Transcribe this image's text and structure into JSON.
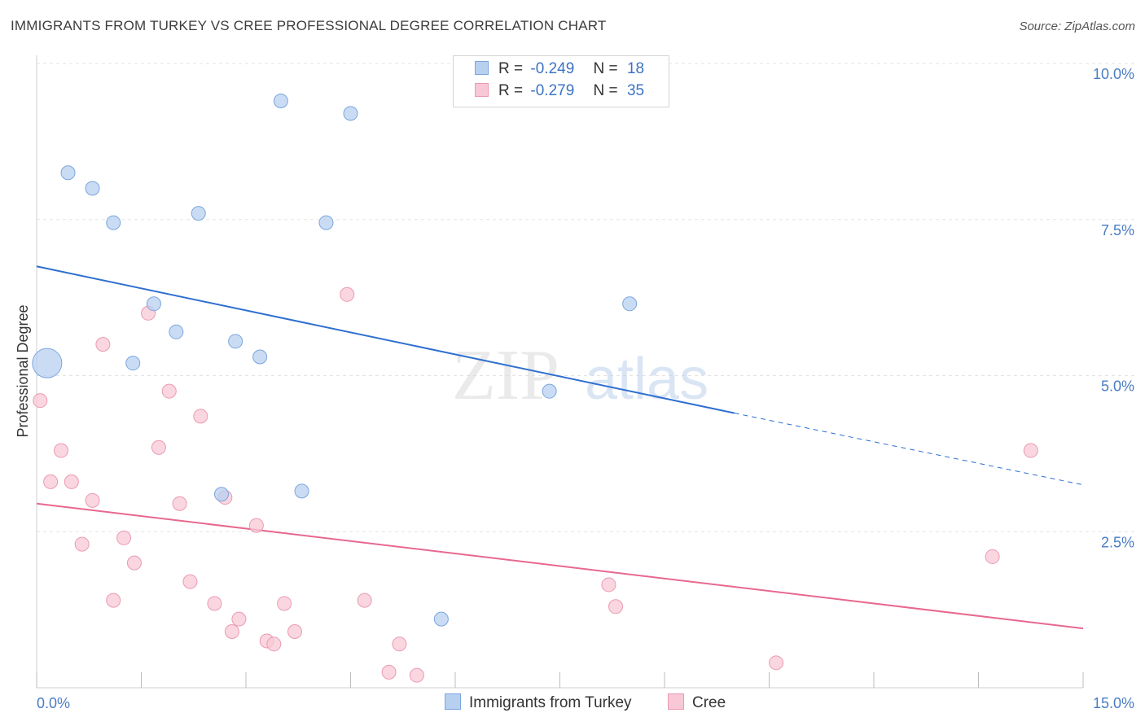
{
  "header": {
    "title": "IMMIGRANTS FROM TURKEY VS CREE PROFESSIONAL DEGREE CORRELATION CHART",
    "source": "Source: ZipAtlas.com"
  },
  "legend": {
    "series": [
      {
        "r_label": "R =",
        "r_value": "-0.249",
        "n_label": "N =",
        "n_value": "18"
      },
      {
        "r_label": "R =",
        "r_value": "-0.279",
        "n_label": "N =",
        "n_value": "35"
      }
    ]
  },
  "bottom_legend": {
    "turkey": "Immigrants from Turkey",
    "cree": "Cree"
  },
  "watermark": {
    "zip": "ZIP",
    "atlas": "atlas"
  },
  "colors": {
    "turkey_fill": "#b8d0f0",
    "turkey_stroke": "#7aa6de",
    "turkey_line": "#2f6fd0",
    "cree_fill": "#f8c8d6",
    "cree_stroke": "#eb9ab2",
    "cree_line": "#e8688f",
    "tick_text": "#4a7cc4",
    "grid": "#e3e3e3"
  },
  "chart_data": {
    "type": "scatter",
    "title": "IMMIGRANTS FROM TURKEY VS CREE PROFESSIONAL DEGREE CORRELATION CHART",
    "xlabel": "",
    "ylabel": "Professional Degree",
    "xlim": [
      0,
      15
    ],
    "ylim": [
      0,
      10
    ],
    "x_tick_labels": [
      "0.0%",
      "15.0%"
    ],
    "y_ticks": [
      2.5,
      5.0,
      7.5,
      10.0
    ],
    "y_tick_labels": [
      "2.5%",
      "5.0%",
      "7.5%",
      "10.0%"
    ],
    "grid": "horizontal dashed",
    "legend_position": "top-center",
    "series": [
      {
        "name": "Immigrants from Turkey",
        "r": -0.249,
        "n": 18,
        "points": [
          {
            "x": 0.15,
            "y": 5.2,
            "size": "large"
          },
          {
            "x": 0.45,
            "y": 8.25
          },
          {
            "x": 0.8,
            "y": 8.0
          },
          {
            "x": 1.1,
            "y": 7.45
          },
          {
            "x": 1.38,
            "y": 5.2
          },
          {
            "x": 1.68,
            "y": 6.15
          },
          {
            "x": 2.0,
            "y": 5.7
          },
          {
            "x": 2.32,
            "y": 7.6
          },
          {
            "x": 2.65,
            "y": 3.1
          },
          {
            "x": 2.85,
            "y": 5.55
          },
          {
            "x": 3.2,
            "y": 5.3
          },
          {
            "x": 3.5,
            "y": 9.4
          },
          {
            "x": 3.8,
            "y": 3.15
          },
          {
            "x": 4.15,
            "y": 7.45
          },
          {
            "x": 4.5,
            "y": 9.2
          },
          {
            "x": 5.8,
            "y": 1.1
          },
          {
            "x": 7.35,
            "y": 4.75
          },
          {
            "x": 8.5,
            "y": 6.15
          }
        ],
        "trend": {
          "x0": 0.0,
          "y0": 6.75,
          "x1": 10.0,
          "y1": 4.4,
          "dashed_to_x": 15.0,
          "dashed_to_y": 3.25
        }
      },
      {
        "name": "Cree",
        "r": -0.279,
        "n": 35,
        "points": [
          {
            "x": 0.05,
            "y": 4.6
          },
          {
            "x": 0.2,
            "y": 3.3
          },
          {
            "x": 0.35,
            "y": 3.8
          },
          {
            "x": 0.5,
            "y": 3.3
          },
          {
            "x": 0.65,
            "y": 2.3
          },
          {
            "x": 0.8,
            "y": 3.0
          },
          {
            "x": 0.95,
            "y": 5.5
          },
          {
            "x": 1.1,
            "y": 1.4
          },
          {
            "x": 1.25,
            "y": 2.4
          },
          {
            "x": 1.4,
            "y": 2.0
          },
          {
            "x": 1.6,
            "y": 6.0
          },
          {
            "x": 1.75,
            "y": 3.85
          },
          {
            "x": 1.9,
            "y": 4.75
          },
          {
            "x": 2.05,
            "y": 2.95
          },
          {
            "x": 2.2,
            "y": 1.7
          },
          {
            "x": 2.35,
            "y": 4.35
          },
          {
            "x": 2.55,
            "y": 1.35
          },
          {
            "x": 2.7,
            "y": 3.05
          },
          {
            "x": 2.8,
            "y": 0.9
          },
          {
            "x": 2.9,
            "y": 1.1
          },
          {
            "x": 3.15,
            "y": 2.6
          },
          {
            "x": 3.3,
            "y": 0.75
          },
          {
            "x": 3.4,
            "y": 0.7
          },
          {
            "x": 3.55,
            "y": 1.35
          },
          {
            "x": 3.7,
            "y": 0.9
          },
          {
            "x": 4.45,
            "y": 6.3
          },
          {
            "x": 4.7,
            "y": 1.4
          },
          {
            "x": 5.05,
            "y": 0.25
          },
          {
            "x": 5.2,
            "y": 0.7
          },
          {
            "x": 5.45,
            "y": 0.2
          },
          {
            "x": 8.2,
            "y": 1.65
          },
          {
            "x": 8.3,
            "y": 1.3
          },
          {
            "x": 10.6,
            "y": 0.4
          },
          {
            "x": 13.7,
            "y": 2.1
          },
          {
            "x": 14.25,
            "y": 3.8
          }
        ],
        "trend": {
          "x0": 0.0,
          "y0": 2.95,
          "x1": 15.0,
          "y1": 0.95
        }
      }
    ]
  }
}
